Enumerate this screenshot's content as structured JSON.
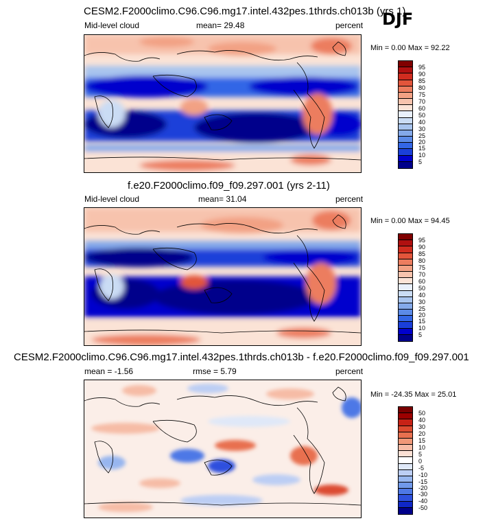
{
  "season": "DJF",
  "colors": {
    "abs_scale": [
      "#00008b",
      "#0000cd",
      "#1a3fd9",
      "#3366e6",
      "#5b8ae8",
      "#84a9ea",
      "#a8c4ee",
      "#cadcf4",
      "#e9f0fb",
      "#fbe3d6",
      "#f7c3ad",
      "#f2a184",
      "#ec7d5f",
      "#e2553b",
      "#d02c1f",
      "#b01010",
      "#800000"
    ],
    "diff_scale": [
      "#00008b",
      "#0f27c7",
      "#2e50de",
      "#4e78e6",
      "#7099ea",
      "#97b6ef",
      "#bccef4",
      "#dfe8f8",
      "#ffffff",
      "#fbe0d4",
      "#f6bca6",
      "#f09878",
      "#e8704f",
      "#dc4b30",
      "#c72216",
      "#9c0000",
      "#7a0000"
    ]
  },
  "panels": [
    {
      "title": "CESM2.F2000climo.C96.C96.mg17.intel.432pes.1thrds.ch013b (yrs 1)",
      "left_label": "Mid-level cloud",
      "center_label": "mean=  29.48",
      "right_label": "percent",
      "minmax": "Min =  0.00 Max =  92.22",
      "scale": "abs",
      "ticks": [
        "95",
        "90",
        "85",
        "80",
        "75",
        "70",
        "60",
        "50",
        "40",
        "30",
        "25",
        "20",
        "15",
        "10",
        "5"
      ]
    },
    {
      "title": "f.e20.F2000climo.f09_f09.297.001 (yrs 2-11)",
      "left_label": "Mid-level cloud",
      "center_label": "mean=  31.04",
      "right_label": "percent",
      "minmax": "Min =  0.00 Max =  94.45",
      "scale": "abs",
      "ticks": [
        "95",
        "90",
        "85",
        "80",
        "75",
        "70",
        "60",
        "50",
        "40",
        "30",
        "25",
        "20",
        "15",
        "10",
        "5"
      ]
    },
    {
      "title": "CESM2.F2000climo.C96.C96.mg17.intel.432pes.1thrds.ch013b - f.e20.F2000climo.f09_f09.297.001",
      "left_label": "mean =  -1.56",
      "center_label": "rmse =  5.79",
      "right_label": "percent",
      "minmax": "Min = -24.35 Max =  25.01",
      "scale": "diff",
      "ticks": [
        "50",
        "40",
        "30",
        "20",
        "15",
        "10",
        "5",
        "0",
        "-5",
        "-10",
        "-15",
        "-20",
        "-30",
        "-40",
        "-50"
      ]
    }
  ]
}
